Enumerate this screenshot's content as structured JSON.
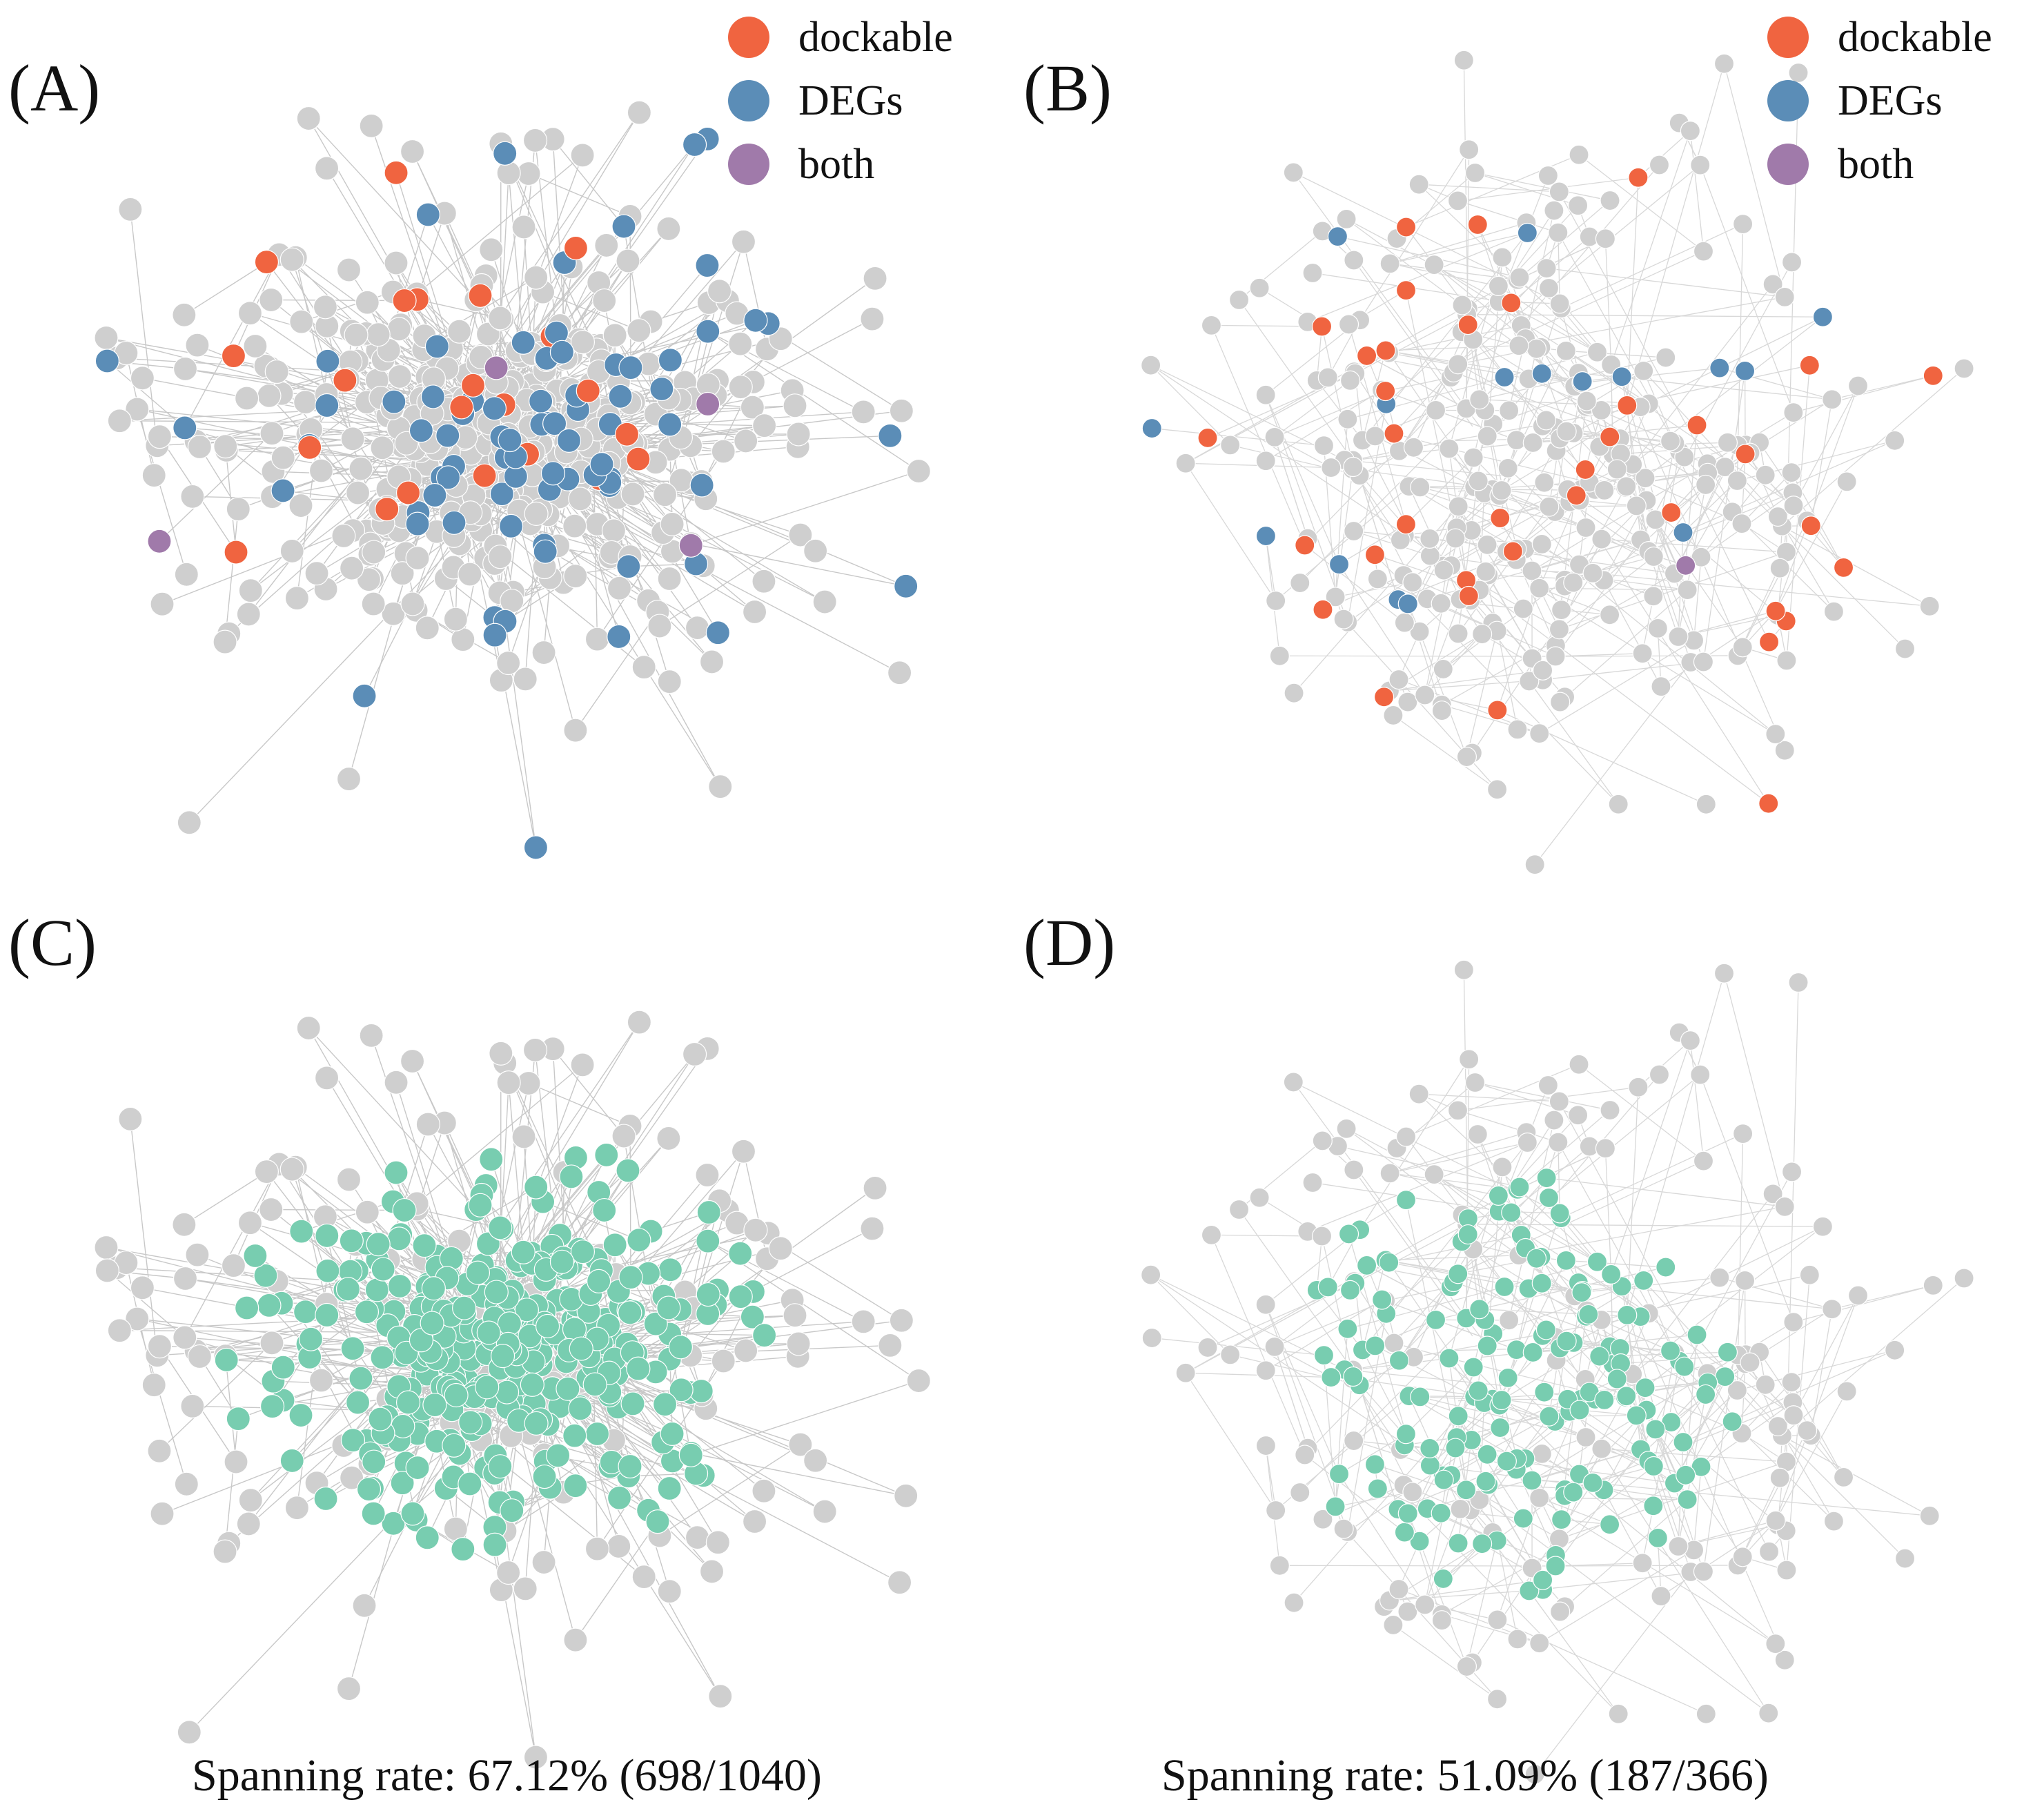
{
  "colors": {
    "dockable": "#f06440",
    "degs": "#5b8db7",
    "both": "#a07aaa",
    "spanning": "#78cdb0",
    "node": "#cfcfcf",
    "edge": "#d6d6d6"
  },
  "panels": [
    {
      "id": "A",
      "label": "(A)",
      "legend": [
        {
          "key": "dockable",
          "text": "dockable"
        },
        {
          "key": "degs",
          "text": "DEGs"
        },
        {
          "key": "both",
          "text": "both"
        }
      ],
      "network": {
        "mode": "categories",
        "counts": {
          "dockable": 22,
          "degs": 78,
          "both": 4
        }
      }
    },
    {
      "id": "B",
      "label": "(B)",
      "legend": [
        {
          "key": "dockable",
          "text": "dockable"
        },
        {
          "key": "degs",
          "text": "DEGs"
        },
        {
          "key": "both",
          "text": "both"
        }
      ],
      "network": {
        "mode": "categories",
        "counts": {
          "dockable": 38,
          "degs": 16,
          "both": 1
        }
      }
    },
    {
      "id": "C",
      "label": "(C)",
      "network": {
        "mode": "spanning",
        "spanned": 698,
        "total": 1040
      },
      "caption": "Spanning rate: 67.12% (698/1040)"
    },
    {
      "id": "D",
      "label": "(D)",
      "network": {
        "mode": "spanning",
        "spanned": 187,
        "total": 366
      },
      "caption": "Spanning rate: 51.09% (187/366)"
    }
  ]
}
